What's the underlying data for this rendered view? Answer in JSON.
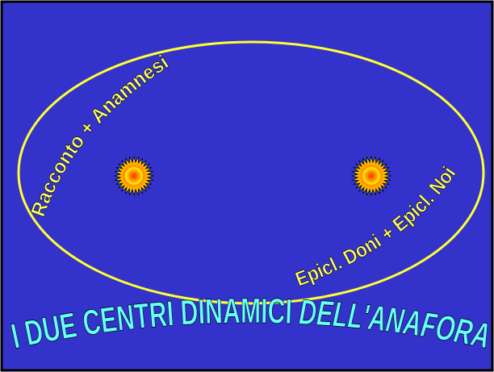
{
  "slide": {
    "background_color": "#3333CC",
    "frame_color": "#000000",
    "ellipse_color": "#FFFF33",
    "label_color": "#FFFF66",
    "title_color": "#66FFFF",
    "arc_label_left": "Racconto + Anamnesi",
    "arc_label_right": "Epicl. Doni + Epicl. Noi",
    "title_parts": {
      "part1": "I DUE CENTRI DINAMICI ",
      "part2": "DELL'ANAFORA"
    },
    "centers": [
      {
        "name": "left-center",
        "icon": "sun-burst-icon"
      },
      {
        "name": "right-center",
        "icon": "sun-burst-icon"
      }
    ]
  }
}
